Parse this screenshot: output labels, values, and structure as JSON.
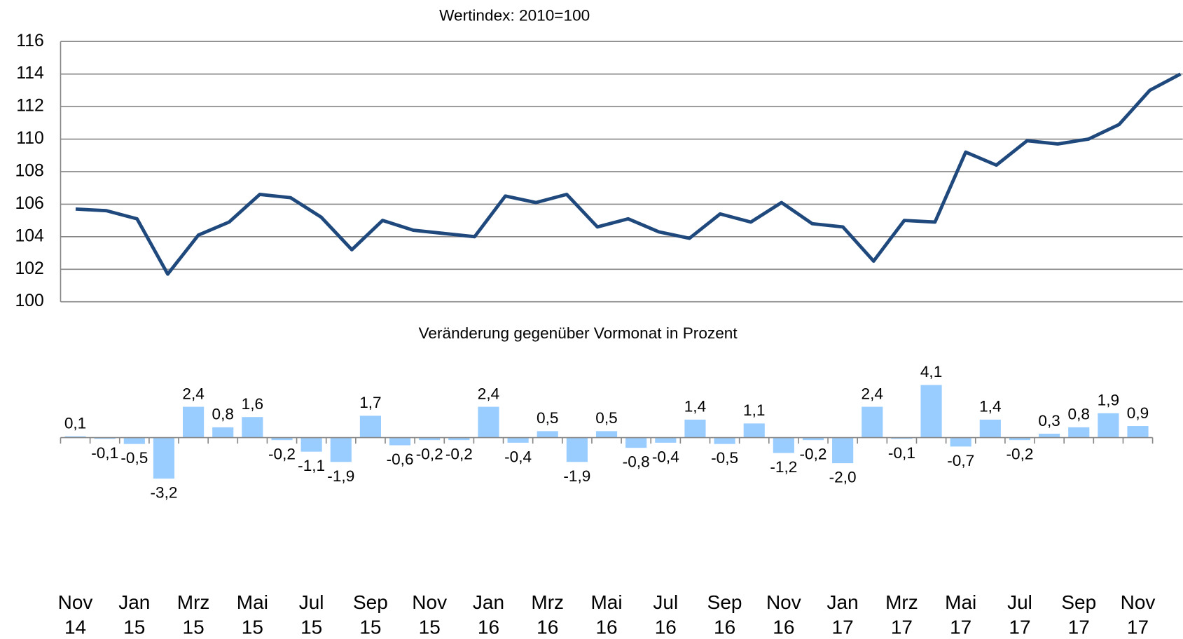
{
  "chart_data": [
    {
      "type": "line",
      "title": "Wertindex: 2010=100",
      "values": [
        105.7,
        105.6,
        105.1,
        101.7,
        104.1,
        104.9,
        106.6,
        106.4,
        105.2,
        103.2,
        105.0,
        104.4,
        104.2,
        104.0,
        106.5,
        106.1,
        106.6,
        104.6,
        105.1,
        104.3,
        103.9,
        105.4,
        104.9,
        106.1,
        104.8,
        104.6,
        102.5,
        105.0,
        104.9,
        109.2,
        108.4,
        109.9,
        109.7,
        110.0,
        110.9,
        113.0,
        114.0
      ],
      "color": "#1f497d",
      "ylim": [
        100,
        116
      ],
      "yticks": [
        100,
        102,
        104,
        106,
        108,
        110,
        112,
        114,
        116
      ],
      "grid": true
    },
    {
      "type": "bar",
      "title": "Veränderung gegenüber Vormonat in Prozent",
      "categories": [
        "Nov\n14",
        null,
        "Jan\n15",
        null,
        "Mrz\n15",
        null,
        "Mai\n15",
        null,
        "Jul\n15",
        null,
        "Sep\n15",
        null,
        "Nov\n15",
        null,
        "Jan\n16",
        null,
        "Mrz\n16",
        null,
        "Mai\n16",
        null,
        "Jul\n16",
        null,
        "Sep\n16",
        null,
        "Nov\n16",
        null,
        "Jan\n17",
        null,
        "Mrz\n17",
        null,
        "Mai\n17",
        null,
        "Jul\n17",
        null,
        "Sep\n17",
        null,
        "Nov\n17"
      ],
      "values": [
        0.1,
        -0.1,
        -0.5,
        -3.2,
        2.4,
        0.8,
        1.6,
        -0.2,
        -1.1,
        -1.9,
        1.7,
        -0.6,
        -0.2,
        -0.2,
        2.4,
        -0.4,
        0.5,
        -1.9,
        0.5,
        -0.8,
        -0.4,
        1.4,
        -0.5,
        1.1,
        -1.2,
        -0.2,
        -2.0,
        2.4,
        -0.1,
        4.1,
        -0.7,
        1.4,
        -0.2,
        0.3,
        0.8,
        1.9,
        0.9
      ],
      "value_labels": [
        "0,1",
        "-0,1",
        "-0,5",
        "-3,2",
        "2,4",
        "0,8",
        "1,6",
        "-0,2",
        "-1,1",
        "-1,9",
        "1,7",
        "-0,6",
        "-0,2",
        "-0,2",
        "2,4",
        "-0,4",
        "0,5",
        "-1,9",
        "0,5",
        "-0,8",
        "-0,4",
        "1,4",
        "-0,5",
        "1,1",
        "-1,2",
        "-0,2",
        "-2,0",
        "2,4",
        "-0,1",
        "4,1",
        "-0,7",
        "1,4",
        "-0,2",
        "0,3",
        "0,8",
        "1,9",
        "0,9"
      ],
      "color": "#99ccff"
    }
  ]
}
